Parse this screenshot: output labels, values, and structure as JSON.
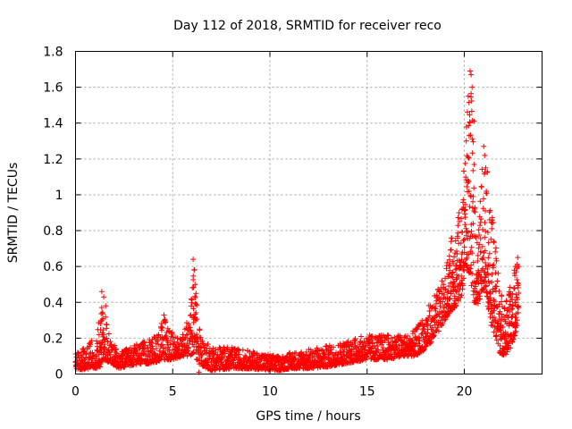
{
  "chart_data": {
    "type": "scatter",
    "title": "Day 112 of 2018, SRMTID for receiver reco",
    "xlabel": "GPS time / hours",
    "ylabel": "SRMTID / TECUs",
    "xlim": [
      0,
      24
    ],
    "ylim": [
      0,
      1.8
    ],
    "x_ticks": [
      "0",
      "5",
      "10",
      "15",
      "20"
    ],
    "y_ticks": [
      "0",
      "0.2",
      "0.4",
      "0.6",
      "0.8",
      "1",
      "1.2",
      "1.4",
      "1.6",
      "1.8"
    ],
    "grid": true,
    "marker": "+",
    "color": "#ff0000",
    "series": [
      {
        "name": "SRMTID",
        "profile_x": [
          0,
          0.5,
          0.8,
          1.0,
          1.3,
          1.5,
          1.8,
          2.2,
          3,
          4,
          4.6,
          5,
          5.5,
          5.9,
          6.1,
          6.3,
          6.6,
          7,
          8,
          9,
          10,
          10.5,
          11,
          12,
          13,
          14,
          15,
          16,
          17,
          17.5,
          18,
          18.5,
          19,
          19.3,
          19.6,
          19.9,
          20.1,
          20.3,
          20.5,
          20.7,
          20.9,
          21.1,
          21.3,
          21.6,
          21.8,
          22.1,
          22.4,
          22.7,
          22.8
        ],
        "profile_low": [
          0.03,
          0.02,
          0.04,
          0.03,
          0.04,
          0.08,
          0.06,
          0.03,
          0.05,
          0.06,
          0.08,
          0.08,
          0.1,
          0.1,
          0.12,
          0.06,
          0.04,
          0.02,
          0.03,
          0.03,
          0.02,
          0.02,
          0.03,
          0.03,
          0.04,
          0.06,
          0.08,
          0.08,
          0.1,
          0.1,
          0.14,
          0.2,
          0.3,
          0.35,
          0.38,
          0.45,
          0.6,
          0.55,
          0.4,
          0.38,
          0.45,
          0.5,
          0.3,
          0.2,
          0.12,
          0.1,
          0.15,
          0.25,
          0.28
        ],
        "profile_high": [
          0.12,
          0.15,
          0.2,
          0.1,
          0.46,
          0.35,
          0.2,
          0.12,
          0.16,
          0.2,
          0.33,
          0.22,
          0.22,
          0.35,
          0.65,
          0.3,
          0.18,
          0.16,
          0.15,
          0.13,
          0.11,
          0.1,
          0.12,
          0.14,
          0.16,
          0.19,
          0.22,
          0.22,
          0.22,
          0.25,
          0.35,
          0.45,
          0.55,
          0.75,
          0.85,
          1.0,
          1.38,
          1.7,
          1.25,
          0.7,
          1.15,
          1.28,
          0.95,
          0.8,
          0.5,
          0.4,
          0.5,
          0.65,
          0.6
        ],
        "spikes": [
          [
            1.35,
            0.46
          ],
          [
            1.45,
            0.43
          ],
          [
            1.55,
            0.38
          ],
          [
            4.55,
            0.33
          ],
          [
            4.6,
            0.3
          ],
          [
            6.05,
            0.64
          ],
          [
            6.1,
            0.58
          ],
          [
            6.15,
            0.5
          ],
          [
            6.2,
            0.45
          ],
          [
            6.35,
            0.01
          ],
          [
            20.3,
            1.69
          ],
          [
            20.35,
            1.67
          ],
          [
            20.4,
            1.6
          ],
          [
            20.2,
            1.55
          ],
          [
            20.5,
            1.41
          ],
          [
            20.25,
            1.33
          ],
          [
            20.1,
            1.3
          ],
          [
            21.0,
            1.27
          ],
          [
            21.05,
            1.22
          ],
          [
            21.1,
            1.15
          ],
          [
            22.75,
            0.65
          ],
          [
            22.8,
            0.6
          ],
          [
            22.6,
            0.55
          ]
        ]
      }
    ]
  }
}
